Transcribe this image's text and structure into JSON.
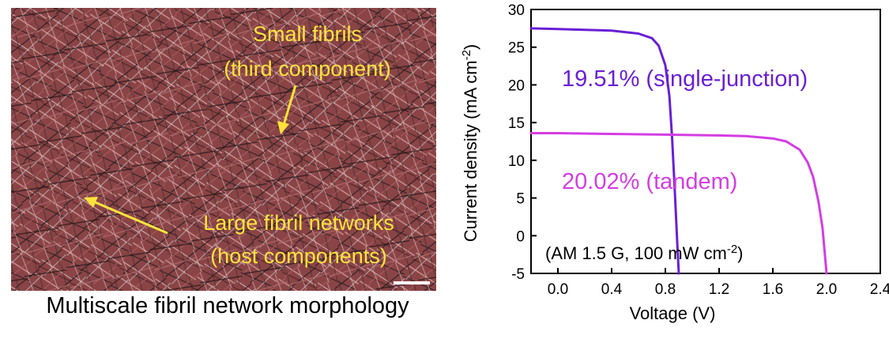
{
  "micrograph": {
    "caption": "Multiscale fibril network morphology",
    "annotations": [
      {
        "line1": "Small fibrils",
        "line2": "(third component)"
      },
      {
        "line1": "Large fibril networks",
        "line2": "(host components)"
      }
    ]
  },
  "chart_data": {
    "type": "line",
    "xlabel": "Voltage (V)",
    "ylabel": "Current density (mA cm",
    "ylabel_sup": "-2",
    "ylabel_close": ")",
    "xlim": [
      -0.2,
      2.4
    ],
    "ylim": [
      -5,
      30
    ],
    "xticks": [
      "0.0",
      "0.4",
      "0.8",
      "1.2",
      "1.6",
      "2.0",
      "2.4"
    ],
    "yticks": [
      "-5",
      "0",
      "5",
      "10",
      "15",
      "20",
      "25",
      "30"
    ],
    "grid": false,
    "condition": {
      "text": "(AM 1.5 G, 100 mW cm",
      "sup": "-2",
      "close": ")"
    },
    "series": [
      {
        "name": "19.51% (single-junction)",
        "color": "#6a1fd6",
        "points": [
          [
            -0.2,
            27.5
          ],
          [
            0.0,
            27.4
          ],
          [
            0.2,
            27.3
          ],
          [
            0.4,
            27.2
          ],
          [
            0.5,
            27.0
          ],
          [
            0.6,
            26.8
          ],
          [
            0.7,
            26.2
          ],
          [
            0.75,
            25.2
          ],
          [
            0.8,
            22.6
          ],
          [
            0.83,
            18.5
          ],
          [
            0.85,
            13.0
          ],
          [
            0.87,
            6.0
          ],
          [
            0.89,
            -1.5
          ],
          [
            0.9,
            -5.0
          ]
        ]
      },
      {
        "name": "20.02% (tandem)",
        "color": "#d43de3",
        "points": [
          [
            -0.2,
            13.6
          ],
          [
            0.0,
            13.6
          ],
          [
            0.4,
            13.5
          ],
          [
            0.8,
            13.4
          ],
          [
            1.2,
            13.3
          ],
          [
            1.4,
            13.2
          ],
          [
            1.6,
            12.9
          ],
          [
            1.7,
            12.5
          ],
          [
            1.8,
            11.4
          ],
          [
            1.86,
            9.7
          ],
          [
            1.9,
            7.8
          ],
          [
            1.94,
            4.5
          ],
          [
            1.97,
            1.0
          ],
          [
            2.0,
            -5.0
          ]
        ]
      }
    ]
  }
}
